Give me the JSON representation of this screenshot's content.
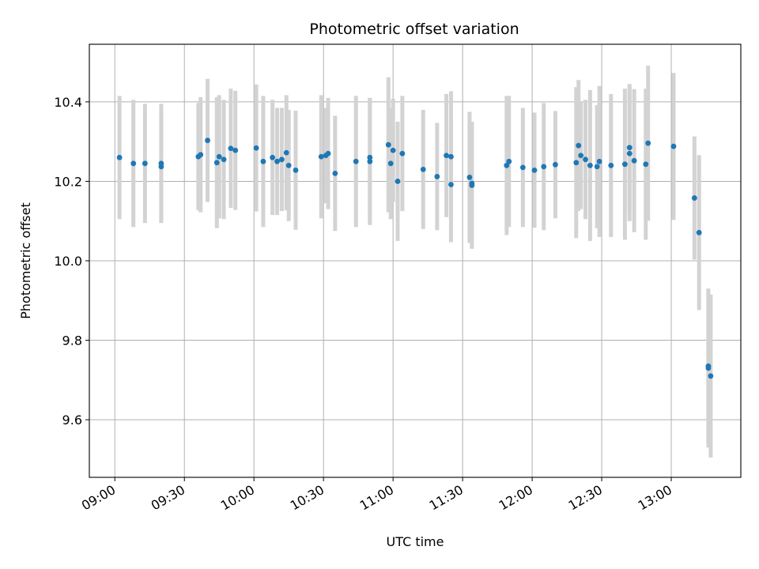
{
  "chart_data": {
    "type": "scatter",
    "title": "Photometric offset variation",
    "xlabel": "UTC time",
    "ylabel": "Photometric offset",
    "xlim": [
      "08:49",
      "13:30"
    ],
    "ylim": [
      9.455,
      10.545
    ],
    "x_ticks": [
      "09:00",
      "09:30",
      "10:00",
      "10:30",
      "11:00",
      "11:30",
      "12:00",
      "12:30",
      "13:00"
    ],
    "y_ticks": [
      "9.6",
      "9.8",
      "10.0",
      "10.2",
      "10.4"
    ],
    "grid": true,
    "colors": {
      "marker": "#1f77b4",
      "errorbar": "#d3d3d3",
      "grid": "#b0b0b0"
    },
    "series": [
      {
        "x": [
          "09:02",
          "09:08",
          "09:13",
          "09:20",
          "09:20",
          "09:36",
          "09:37",
          "09:40",
          "09:44",
          "09:45",
          "09:47",
          "09:50",
          "09:52",
          "10:01",
          "10:04",
          "10:08",
          "10:10",
          "10:12",
          "10:14",
          "10:15",
          "10:18",
          "10:29",
          "10:31",
          "10:32",
          "10:35",
          "10:44",
          "10:50",
          "10:50",
          "10:58",
          "10:59",
          "11:00",
          "11:02",
          "11:04",
          "11:13",
          "11:19",
          "11:23",
          "11:25",
          "11:25",
          "11:33",
          "11:34",
          "11:34",
          "11:49",
          "11:50",
          "11:56",
          "12:01",
          "12:05",
          "12:10",
          "12:19",
          "12:20",
          "12:21",
          "12:23",
          "12:25",
          "12:28",
          "12:29",
          "12:34",
          "12:40",
          "12:42",
          "12:42",
          "12:44",
          "12:49",
          "12:50",
          "13:01",
          "13:10",
          "13:12",
          "13:16",
          "13:16",
          "13:17"
        ],
        "y": [
          10.26,
          10.245,
          10.245,
          10.245,
          10.237,
          10.262,
          10.267,
          10.303,
          10.247,
          10.262,
          10.255,
          10.283,
          10.278,
          10.284,
          10.25,
          10.26,
          10.25,
          10.255,
          10.272,
          10.24,
          10.228,
          10.262,
          10.265,
          10.27,
          10.22,
          10.25,
          10.25,
          10.26,
          10.292,
          10.245,
          10.278,
          10.2,
          10.27,
          10.23,
          10.212,
          10.265,
          10.262,
          10.192,
          10.21,
          10.195,
          10.19,
          10.24,
          10.25,
          10.235,
          10.228,
          10.237,
          10.242,
          10.247,
          10.29,
          10.265,
          10.255,
          10.24,
          10.237,
          10.25,
          10.24,
          10.243,
          10.285,
          10.27,
          10.252,
          10.243,
          10.296,
          10.288,
          10.158,
          10.071,
          9.735,
          9.73,
          9.71
        ],
        "err": [
          0.155,
          0.16,
          0.15,
          0.15,
          0.14,
          0.135,
          0.145,
          0.155,
          0.165,
          0.155,
          0.15,
          0.15,
          0.15,
          0.16,
          0.165,
          0.145,
          0.135,
          0.13,
          0.145,
          0.14,
          0.15,
          0.155,
          0.12,
          0.14,
          0.145,
          0.165,
          0.16,
          0.15,
          0.17,
          0.14,
          0.13,
          0.15,
          0.145,
          0.15,
          0.135,
          0.155,
          0.165,
          0.145,
          0.165,
          0.155,
          0.16,
          0.175,
          0.165,
          0.15,
          0.145,
          0.16,
          0.135,
          0.19,
          0.165,
          0.135,
          0.15,
          0.19,
          0.155,
          0.19,
          0.18,
          0.19,
          0.16,
          0.17,
          0.18,
          0.19,
          0.195,
          0.185,
          0.155,
          0.195,
          0.195,
          0.2,
          0.205
        ]
      }
    ]
  }
}
